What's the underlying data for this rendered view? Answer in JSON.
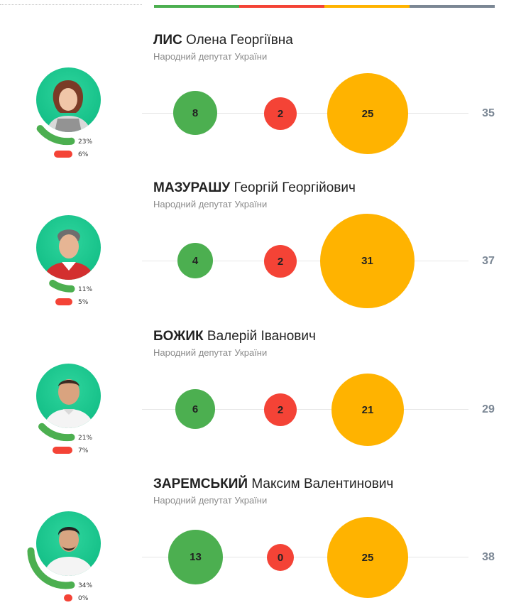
{
  "colors": {
    "green": "#4caf50",
    "red": "#f44336",
    "orange": "#ffb300",
    "gray": "#7b8794",
    "avatar_bg": "#16c189"
  },
  "top_bar": [
    {
      "color": "#4caf50"
    },
    {
      "color": "#f44336"
    },
    {
      "color": "#ffb300"
    },
    {
      "color": "#7b8794"
    }
  ],
  "deputies": [
    {
      "surname": "ЛИС",
      "given": "Олена Георгіївна",
      "role": "Народний депутат України",
      "green_pct_label": "23%",
      "red_pct_label": "6%",
      "green_pct": 23,
      "red_pct": 6,
      "green": "8",
      "red": "2",
      "orange": "25",
      "total": "35"
    },
    {
      "surname": "МАЗУРАШУ",
      "given": "Георгій Георгійович",
      "role": "Народний депутат України",
      "green_pct_label": "11%",
      "red_pct_label": "5%",
      "green_pct": 11,
      "red_pct": 5,
      "green": "4",
      "red": "2",
      "orange": "31",
      "total": "37"
    },
    {
      "surname": "БОЖИК",
      "given": "Валерій Іванович",
      "role": "Народний депутат України",
      "green_pct_label": "21%",
      "red_pct_label": "7%",
      "green_pct": 21,
      "red_pct": 7,
      "green": "6",
      "red": "2",
      "orange": "21",
      "total": "29"
    },
    {
      "surname": "ЗАРЕМСЬКИЙ",
      "given": "Максим Валентинович",
      "role": "Народний депутат України",
      "green_pct_label": "34%",
      "red_pct_label": "0%",
      "green_pct": 34,
      "red_pct": 0,
      "green": "13",
      "red": "0",
      "orange": "25",
      "total": "38"
    }
  ]
}
